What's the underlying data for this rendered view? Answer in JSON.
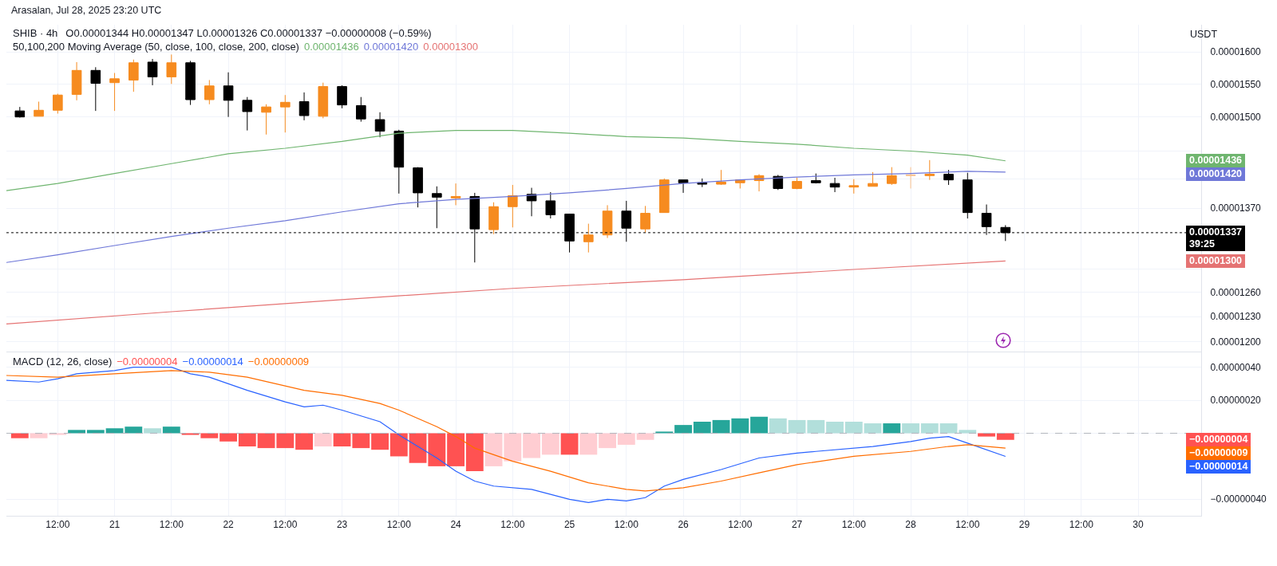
{
  "chart_data": [
    {
      "type": "candlestick",
      "title": "SHIB · 4h",
      "subtitle": "O0.00001344  H0.00001347  L0.00001326  C0.00001337  −0.00000008 (−0.59%)",
      "annotations": [
        "50,100,200 Moving Average (50, close, 100, close, 200, close)",
        "USDT",
        "Arasalan, Jul 28, 2025 23:20 UTC",
        "0.00001436",
        "0.00001420",
        "0.00001300"
      ],
      "x": [
        "2025-07-20T04:00",
        "2025-07-20T08:00",
        "2025-07-20T12:00",
        "2025-07-20T16:00",
        "2025-07-20T20:00",
        "2025-07-21T00:00",
        "2025-07-21T04:00",
        "2025-07-21T08:00",
        "2025-07-21T12:00",
        "2025-07-21T16:00",
        "2025-07-21T20:00",
        "2025-07-22T00:00",
        "2025-07-22T04:00",
        "2025-07-22T08:00",
        "2025-07-22T12:00",
        "2025-07-22T16:00",
        "2025-07-22T20:00",
        "2025-07-23T00:00",
        "2025-07-23T04:00",
        "2025-07-23T08:00",
        "2025-07-23T12:00",
        "2025-07-23T16:00",
        "2025-07-23T20:00",
        "2025-07-24T00:00",
        "2025-07-24T04:00",
        "2025-07-24T08:00",
        "2025-07-24T12:00",
        "2025-07-24T16:00",
        "2025-07-24T20:00",
        "2025-07-25T00:00",
        "2025-07-25T04:00",
        "2025-07-25T08:00",
        "2025-07-25T12:00",
        "2025-07-25T16:00",
        "2025-07-25T20:00",
        "2025-07-26T00:00",
        "2025-07-26T04:00",
        "2025-07-26T08:00",
        "2025-07-26T12:00",
        "2025-07-26T16:00",
        "2025-07-26T20:00",
        "2025-07-27T00:00",
        "2025-07-27T04:00",
        "2025-07-27T08:00",
        "2025-07-27T12:00",
        "2025-07-27T16:00",
        "2025-07-27T20:00",
        "2025-07-28T00:00",
        "2025-07-28T04:00",
        "2025-07-28T08:00",
        "2025-07-28T12:00",
        "2025-07-28T16:00",
        "2025-07-28T20:00"
      ],
      "ohlc": [
        [
          1.509e-05,
          1.515e-05,
          1.499e-05,
          1.5e-05
        ],
        [
          1.501e-05,
          1.523e-05,
          1.501e-05,
          1.51e-05
        ],
        [
          1.51e-05,
          1.535e-05,
          1.505e-05,
          1.533e-05
        ],
        [
          1.534e-05,
          1.584e-05,
          1.525e-05,
          1.571e-05
        ],
        [
          1.571e-05,
          1.576e-05,
          1.509e-05,
          1.551e-05
        ],
        [
          1.552e-05,
          1.567e-05,
          1.509e-05,
          1.558e-05
        ],
        [
          1.556e-05,
          1.588e-05,
          1.538e-05,
          1.583e-05
        ],
        [
          1.584e-05,
          1.589e-05,
          1.548e-05,
          1.561e-05
        ],
        [
          1.561e-05,
          1.596e-05,
          1.55e-05,
          1.583e-05
        ],
        [
          1.583e-05,
          1.586e-05,
          1.518e-05,
          1.526e-05
        ],
        [
          1.526e-05,
          1.556e-05,
          1.519e-05,
          1.547e-05
        ],
        [
          1.547e-05,
          1.568e-05,
          1.5e-05,
          1.525e-05
        ],
        [
          1.525e-05,
          1.53e-05,
          1.48e-05,
          1.508e-05
        ],
        [
          1.507e-05,
          1.519e-05,
          1.474e-05,
          1.515e-05
        ],
        [
          1.515e-05,
          1.533e-05,
          1.477e-05,
          1.522e-05
        ],
        [
          1.523e-05,
          1.537e-05,
          1.495e-05,
          1.502e-05
        ],
        [
          1.501e-05,
          1.552e-05,
          1.498e-05,
          1.546e-05
        ],
        [
          1.546e-05,
          1.548e-05,
          1.513e-05,
          1.518e-05
        ],
        [
          1.517e-05,
          1.53e-05,
          1.493e-05,
          1.497e-05
        ],
        [
          1.496e-05,
          1.507e-05,
          1.47e-05,
          1.479e-05
        ],
        [
          1.479e-05,
          1.481e-05,
          1.39e-05,
          1.427e-05
        ],
        [
          1.426e-05,
          1.427e-05,
          1.371e-05,
          1.391e-05
        ],
        [
          1.39e-05,
          1.4e-05,
          1.343e-05,
          1.385e-05
        ],
        [
          1.384e-05,
          1.404e-05,
          1.374e-05,
          1.386e-05
        ],
        [
          1.386e-05,
          1.391e-05,
          1.298e-05,
          1.342e-05
        ],
        [
          1.341e-05,
          1.378e-05,
          1.335e-05,
          1.372e-05
        ],
        [
          1.372e-05,
          1.402e-05,
          1.344e-05,
          1.387e-05
        ],
        [
          1.389e-05,
          1.398e-05,
          1.359e-05,
          1.38e-05
        ],
        [
          1.38e-05,
          1.392e-05,
          1.356e-05,
          1.361e-05
        ],
        [
          1.362e-05,
          1.362e-05,
          1.311e-05,
          1.326e-05
        ],
        [
          1.325e-05,
          1.349e-05,
          1.311e-05,
          1.334e-05
        ],
        [
          1.334e-05,
          1.374e-05,
          1.33e-05,
          1.366e-05
        ],
        [
          1.366e-05,
          1.38e-05,
          1.325e-05,
          1.343e-05
        ],
        [
          1.342e-05,
          1.373e-05,
          1.337e-05,
          1.363e-05
        ],
        [
          1.364e-05,
          1.411e-05,
          1.364e-05,
          1.409e-05
        ],
        [
          1.409e-05,
          1.409e-05,
          1.391e-05,
          1.405e-05
        ],
        [
          1.405e-05,
          1.411e-05,
          1.399e-05,
          1.403e-05
        ],
        [
          1.403e-05,
          1.423e-05,
          1.402e-05,
          1.406e-05
        ],
        [
          1.405e-05,
          1.41e-05,
          1.397e-05,
          1.409e-05
        ],
        [
          1.408e-05,
          1.417e-05,
          1.393e-05,
          1.415e-05
        ],
        [
          1.414e-05,
          1.416e-05,
          1.395e-05,
          1.397e-05
        ],
        [
          1.397e-05,
          1.412e-05,
          1.396e-05,
          1.407e-05
        ],
        [
          1.408e-05,
          1.418e-05,
          1.404e-05,
          1.405e-05
        ],
        [
          1.404e-05,
          1.412e-05,
          1.392e-05,
          1.399e-05
        ],
        [
          1.399e-05,
          1.41e-05,
          1.39e-05,
          1.401e-05
        ],
        [
          1.4e-05,
          1.42e-05,
          1.4e-05,
          1.404e-05
        ],
        [
          1.404e-05,
          1.427e-05,
          1.402e-05,
          1.415e-05
        ],
        [
          1.415e-05,
          1.427e-05,
          1.397e-05,
          1.416e-05
        ],
        [
          1.415e-05,
          1.437e-05,
          1.409e-05,
          1.417e-05
        ],
        [
          1.417e-05,
          1.423e-05,
          1.402e-05,
          1.409e-05
        ],
        [
          1.409e-05,
          1.419e-05,
          1.356e-05,
          1.364e-05
        ],
        [
          1.363e-05,
          1.375e-05,
          1.334e-05,
          1.345e-05
        ],
        [
          1.344e-05,
          1.347e-05,
          1.326e-05,
          1.337e-05
        ]
      ],
      "colors": [
        "#000000",
        "#f68b1f",
        "#f68b1f",
        "#f68b1f",
        "#000000",
        "#f68b1f",
        "#f68b1f",
        "#000000",
        "#f68b1f",
        "#000000",
        "#f68b1f",
        "#000000",
        "#000000",
        "#f68b1f",
        "#f68b1f",
        "#000000",
        "#f68b1f",
        "#000000",
        "#000000",
        "#000000",
        "#000000",
        "#000000",
        "#000000",
        "#f68b1f",
        "#000000",
        "#f68b1f",
        "#f68b1f",
        "#000000",
        "#000000",
        "#000000",
        "#f68b1f",
        "#f68b1f",
        "#000000",
        "#f68b1f",
        "#f68b1f",
        "#000000",
        "#000000",
        "#f68b1f",
        "#f68b1f",
        "#f68b1f",
        "#000000",
        "#f68b1f",
        "#000000",
        "#000000",
        "#f68b1f",
        "#f68b1f",
        "#f68b1f",
        "#f9c18d",
        "#f68b1f",
        "#000000",
        "#000000",
        "#000000",
        "#000000"
      ],
      "series": [
        {
          "type": "line",
          "color": "#6fb56f",
          "x": [
            "2025-07-20T01:10",
            "2025-07-20T12:00",
            "2025-07-21T00:00",
            "2025-07-21T12:00",
            "2025-07-22T00:00",
            "2025-07-22T12:00",
            "2025-07-23T00:00",
            "2025-07-23T12:00",
            "2025-07-24T00:00",
            "2025-07-24T12:00",
            "2025-07-25T00:00",
            "2025-07-25T12:00",
            "2025-07-26T00:00",
            "2025-07-26T12:00",
            "2025-07-27T00:00",
            "2025-07-27T12:00",
            "2025-07-28T00:00",
            "2025-07-28T12:00",
            "2025-07-28T20:00"
          ],
          "values": [
            1.394e-05,
            1.404e-05,
            1.418e-05,
            1.432e-05,
            1.446e-05,
            1.454e-05,
            1.464e-05,
            1.476e-05,
            1.48e-05,
            1.48e-05,
            1.476e-05,
            1.471e-05,
            1.469e-05,
            1.464e-05,
            1.46e-05,
            1.454e-05,
            1.45e-05,
            1.444e-05,
            1.436e-05
          ]
        },
        {
          "type": "line",
          "color": "#6f78d8",
          "x": [
            "2025-07-20T01:10",
            "2025-07-20T12:00",
            "2025-07-21T00:00",
            "2025-07-21T12:00",
            "2025-07-22T00:00",
            "2025-07-22T12:00",
            "2025-07-23T00:00",
            "2025-07-23T12:00",
            "2025-07-24T00:00",
            "2025-07-24T12:00",
            "2025-07-25T00:00",
            "2025-07-25T12:00",
            "2025-07-26T00:00",
            "2025-07-26T12:00",
            "2025-07-27T00:00",
            "2025-07-27T12:00",
            "2025-07-28T00:00",
            "2025-07-28T12:00",
            "2025-07-28T20:00"
          ],
          "values": [
            1.298e-05,
            1.308e-05,
            1.32e-05,
            1.332e-05,
            1.343e-05,
            1.353e-05,
            1.365e-05,
            1.376e-05,
            1.382e-05,
            1.386e-05,
            1.391e-05,
            1.397e-05,
            1.404e-05,
            1.409e-05,
            1.413e-05,
            1.416e-05,
            1.418e-05,
            1.421e-05,
            1.42e-05
          ]
        },
        {
          "type": "line",
          "color": "#e57373",
          "x": [
            "2025-07-20T01:10",
            "2025-07-21T12:00",
            "2025-07-23T00:00",
            "2025-07-24T12:00",
            "2025-07-26T00:00",
            "2025-07-27T12:00",
            "2025-07-28T20:00"
          ],
          "values": [
            1.221e-05,
            1.236e-05,
            1.251e-05,
            1.265e-05,
            1.276e-05,
            1.289e-05,
            1.3e-05
          ]
        }
      ],
      "ref_lines": [
        {
          "axis": "y",
          "value": 1.337e-05,
          "label": "0.00001337\n39:25",
          "color": "#000000",
          "line_style": "dotted"
        }
      ],
      "log": "y",
      "grid": true,
      "tick_labels": "y",
      "xlim": [
        "2025-07-20T01:10",
        "2025-07-30T13:18"
      ],
      "xticks": [
        {
          "value": "2025-07-20T12:00",
          "label": null
        },
        {
          "value": "2025-07-21T00:00",
          "label": null
        },
        {
          "value": "2025-07-21T12:00",
          "label": null
        },
        {
          "value": "2025-07-22T00:00",
          "label": null
        },
        {
          "value": "2025-07-22T12:00",
          "label": null
        },
        {
          "value": "2025-07-23T00:00",
          "label": null
        },
        {
          "value": "2025-07-23T12:00",
          "label": null
        },
        {
          "value": "2025-07-24T00:00",
          "label": null
        },
        {
          "value": "2025-07-24T12:00",
          "label": null
        },
        {
          "value": "2025-07-25T00:00",
          "label": null
        },
        {
          "value": "2025-07-25T12:00",
          "label": null
        },
        {
          "value": "2025-07-26T00:00",
          "label": null
        },
        {
          "value": "2025-07-26T12:00",
          "label": null
        },
        {
          "value": "2025-07-27T00:00",
          "label": null
        },
        {
          "value": "2025-07-27T12:00",
          "label": null
        },
        {
          "value": "2025-07-28T00:00",
          "label": null
        },
        {
          "value": "2025-07-28T12:00",
          "label": null
        },
        {
          "value": "2025-07-29T00:00",
          "label": null
        },
        {
          "value": "2025-07-29T12:00",
          "label": null
        },
        {
          "value": "2025-07-30T00:00",
          "label": null
        }
      ],
      "ylim": [
        1.188e-05,
        1.644e-05
      ],
      "yticks": [
        {
          "value": 1.6e-05,
          "label": "0.00001600"
        },
        {
          "value": 1.55e-05,
          "label": "0.00001550"
        },
        {
          "value": 1.5e-05,
          "label": "0.00001500"
        },
        {
          "value": 1.45e-05,
          "label": null
        },
        {
          "value": 1.41e-05,
          "label": null
        },
        {
          "value": 1.37e-05,
          "label": "0.00001370"
        },
        {
          "value": 1.29e-05,
          "label": null
        },
        {
          "value": 1.26e-05,
          "label": "0.00001260"
        },
        {
          "value": 1.23e-05,
          "label": "0.00001230"
        },
        {
          "value": 1.2e-05,
          "label": "0.00001200"
        }
      ]
    },
    {
      "type": "bar",
      "title": "MACD (12, 26, close)",
      "annotations": [
        "−0.00000004",
        "−0.00000014",
        "−0.00000009"
      ],
      "x": [
        "2025-07-20T04:00",
        "2025-07-20T08:00",
        "2025-07-20T12:00",
        "2025-07-20T16:00",
        "2025-07-20T20:00",
        "2025-07-21T00:00",
        "2025-07-21T04:00",
        "2025-07-21T08:00",
        "2025-07-21T12:00",
        "2025-07-21T16:00",
        "2025-07-21T20:00",
        "2025-07-22T00:00",
        "2025-07-22T04:00",
        "2025-07-22T08:00",
        "2025-07-22T12:00",
        "2025-07-22T16:00",
        "2025-07-22T20:00",
        "2025-07-23T00:00",
        "2025-07-23T04:00",
        "2025-07-23T08:00",
        "2025-07-23T12:00",
        "2025-07-23T16:00",
        "2025-07-23T20:00",
        "2025-07-24T00:00",
        "2025-07-24T04:00",
        "2025-07-24T08:00",
        "2025-07-24T12:00",
        "2025-07-24T16:00",
        "2025-07-24T20:00",
        "2025-07-25T00:00",
        "2025-07-25T04:00",
        "2025-07-25T08:00",
        "2025-07-25T12:00",
        "2025-07-25T16:00",
        "2025-07-25T20:00",
        "2025-07-26T00:00",
        "2025-07-26T04:00",
        "2025-07-26T08:00",
        "2025-07-26T12:00",
        "2025-07-26T16:00",
        "2025-07-26T20:00",
        "2025-07-27T00:00",
        "2025-07-27T04:00",
        "2025-07-27T08:00",
        "2025-07-27T12:00",
        "2025-07-27T16:00",
        "2025-07-27T20:00",
        "2025-07-28T00:00",
        "2025-07-28T04:00",
        "2025-07-28T08:00",
        "2025-07-28T12:00",
        "2025-07-28T16:00",
        "2025-07-28T20:00"
      ],
      "series": [
        {
          "type": "bar",
          "values": [
            -3e-08,
            -3e-08,
            -1e-08,
            2e-08,
            2e-08,
            3e-08,
            4e-08,
            3e-08,
            4e-08,
            -1e-08,
            -3e-08,
            -5e-08,
            -8e-08,
            -9e-08,
            -9e-08,
            -1e-07,
            -8e-08,
            -8e-08,
            -9e-08,
            -1e-07,
            -1.4e-07,
            -1.8e-07,
            -2e-07,
            -2e-07,
            -2.3e-07,
            -2e-07,
            -1.7e-07,
            -1.5e-07,
            -1.3e-07,
            -1.3e-07,
            -1.3e-07,
            -9e-08,
            -7e-08,
            -4e-08,
            1e-08,
            5e-08,
            7e-08,
            8e-08,
            9e-08,
            1e-07,
            9e-08,
            8e-08,
            8e-08,
            7e-08,
            7e-08,
            6e-08,
            6e-08,
            6e-08,
            6e-08,
            6e-08,
            2e-08,
            -2e-08,
            -4e-08
          ],
          "colors": [
            "#ff5252",
            "#ffcdd2",
            "#ffcdd2",
            "#26a69a",
            "#26a69a",
            "#26a69a",
            "#26a69a",
            "#b2dfdb",
            "#26a69a",
            "#ff5252",
            "#ff5252",
            "#ff5252",
            "#ff5252",
            "#ff5252",
            "#ff5252",
            "#ff5252",
            "#ffcdd2",
            "#ff5252",
            "#ff5252",
            "#ff5252",
            "#ff5252",
            "#ff5252",
            "#ff5252",
            "#ff5252",
            "#ff5252",
            "#ffcdd2",
            "#ffcdd2",
            "#ffcdd2",
            "#ffcdd2",
            "#ff5252",
            "#ffcdd2",
            "#ffcdd2",
            "#ffcdd2",
            "#ffcdd2",
            "#26a69a",
            "#26a69a",
            "#26a69a",
            "#26a69a",
            "#26a69a",
            "#26a69a",
            "#b2dfdb",
            "#b2dfdb",
            "#b2dfdb",
            "#b2dfdb",
            "#b2dfdb",
            "#b2dfdb",
            "#26a69a",
            "#b2dfdb",
            "#b2dfdb",
            "#b2dfdb",
            "#b2dfdb",
            "#ff5252",
            "#ff5252"
          ]
        },
        {
          "type": "line",
          "color": "#2962ff",
          "x": [
            "2025-07-20T01:10",
            "2025-07-20T08:00",
            "2025-07-20T12:00",
            "2025-07-20T16:00",
            "2025-07-21T00:00",
            "2025-07-21T04:00",
            "2025-07-21T12:00",
            "2025-07-21T16:00",
            "2025-07-21T20:00",
            "2025-07-22T04:00",
            "2025-07-22T12:00",
            "2025-07-22T16:00",
            "2025-07-22T20:00",
            "2025-07-23T00:00",
            "2025-07-23T08:00",
            "2025-07-23T12:00",
            "2025-07-23T16:00",
            "2025-07-23T20:00",
            "2025-07-24T00:00",
            "2025-07-24T04:00",
            "2025-07-24T08:00",
            "2025-07-24T16:00",
            "2025-07-24T20:00",
            "2025-07-25T00:00",
            "2025-07-25T04:00",
            "2025-07-25T08:00",
            "2025-07-25T12:00",
            "2025-07-25T16:00",
            "2025-07-25T20:00",
            "2025-07-26T00:00",
            "2025-07-26T08:00",
            "2025-07-26T16:00",
            "2025-07-27T00:00",
            "2025-07-27T04:00",
            "2025-07-27T16:00",
            "2025-07-28T00:00",
            "2025-07-28T04:00",
            "2025-07-28T08:00",
            "2025-07-28T12:00",
            "2025-07-28T20:00"
          ],
          "values": [
            3.2e-07,
            3.1e-07,
            3.3e-07,
            3.6e-07,
            3.8e-07,
            4e-07,
            4e-07,
            3.6e-07,
            3.4e-07,
            2.6e-07,
            1.9e-07,
            1.6e-07,
            1.7e-07,
            1.4e-07,
            7e-08,
            -1e-08,
            -8e-08,
            -1.5e-07,
            -2.3e-07,
            -2.9e-07,
            -3.2e-07,
            -3.4e-07,
            -3.7e-07,
            -4e-07,
            -4.2e-07,
            -4e-07,
            -4.1e-07,
            -3.9e-07,
            -3.2e-07,
            -2.8e-07,
            -2.2e-07,
            -1.5e-07,
            -1.2e-07,
            -1.1e-07,
            -8e-08,
            -5e-08,
            -3e-08,
            -2e-08,
            -6e-08,
            -1.4e-07
          ]
        },
        {
          "type": "line",
          "color": "#ff6d00",
          "x": [
            "2025-07-20T01:10",
            "2025-07-20T12:00",
            "2025-07-21T00:00",
            "2025-07-21T12:00",
            "2025-07-21T20:00",
            "2025-07-22T04:00",
            "2025-07-22T16:00",
            "2025-07-23T00:00",
            "2025-07-23T08:00",
            "2025-07-23T12:00",
            "2025-07-23T20:00",
            "2025-07-24T00:00",
            "2025-07-24T04:00",
            "2025-07-24T12:00",
            "2025-07-24T20:00",
            "2025-07-25T04:00",
            "2025-07-25T12:00",
            "2025-07-25T16:00",
            "2025-07-25T20:00",
            "2025-07-26T00:00",
            "2025-07-26T08:00",
            "2025-07-26T16:00",
            "2025-07-27T00:00",
            "2025-07-27T12:00",
            "2025-07-28T00:00",
            "2025-07-28T08:00",
            "2025-07-28T12:00",
            "2025-07-28T20:00"
          ],
          "values": [
            3.5e-07,
            3.4e-07,
            3.6e-07,
            3.8e-07,
            3.7e-07,
            3.4e-07,
            2.6e-07,
            2.3e-07,
            1.8e-07,
            1.4e-07,
            4e-08,
            -2e-08,
            -9e-08,
            -1.7e-07,
            -2.3e-07,
            -3e-07,
            -3.4e-07,
            -3.5e-07,
            -3.4e-07,
            -3.3e-07,
            -2.9e-07,
            -2.4e-07,
            -1.9e-07,
            -1.4e-07,
            -1.1e-07,
            -8e-08,
            -7e-08,
            -9e-08
          ]
        }
      ],
      "ref_lines": [
        {
          "axis": "y",
          "value": 0,
          "color": "#b2b5be",
          "line_style": "dashed"
        }
      ],
      "grid": true,
      "xlim": [
        "2025-07-20T01:10",
        "2025-07-30T13:18"
      ],
      "xticks": [
        {
          "value": "2025-07-20T12:00",
          "label": "12:00"
        },
        {
          "value": "2025-07-21T00:00",
          "label": "21"
        },
        {
          "value": "2025-07-21T12:00",
          "label": "12:00"
        },
        {
          "value": "2025-07-22T00:00",
          "label": "22"
        },
        {
          "value": "2025-07-22T12:00",
          "label": "12:00"
        },
        {
          "value": "2025-07-23T00:00",
          "label": "23"
        },
        {
          "value": "2025-07-23T12:00",
          "label": "12:00"
        },
        {
          "value": "2025-07-24T00:00",
          "label": "24"
        },
        {
          "value": "2025-07-24T12:00",
          "label": "12:00"
        },
        {
          "value": "2025-07-25T00:00",
          "label": "25"
        },
        {
          "value": "2025-07-25T12:00",
          "label": "12:00"
        },
        {
          "value": "2025-07-26T00:00",
          "label": "26"
        },
        {
          "value": "2025-07-26T12:00",
          "label": "12:00"
        },
        {
          "value": "2025-07-27T00:00",
          "label": "27"
        },
        {
          "value": "2025-07-27T12:00",
          "label": "12:00"
        },
        {
          "value": "2025-07-28T00:00",
          "label": "28"
        },
        {
          "value": "2025-07-28T12:00",
          "label": "12:00"
        },
        {
          "value": "2025-07-29T00:00",
          "label": "29"
        },
        {
          "value": "2025-07-29T12:00",
          "label": "12:00"
        },
        {
          "value": "2025-07-30T00:00",
          "label": "30"
        }
      ],
      "ylim": [
        -5e-07,
        4.9e-07
      ],
      "yticks": [
        {
          "value": 4e-07,
          "label": "0.00000040"
        },
        {
          "value": 2e-07,
          "label": "0.00000020"
        },
        {
          "value": 0,
          "label": null
        },
        {
          "value": -4e-07,
          "label": "−0.00000040"
        }
      ]
    }
  ]
}
